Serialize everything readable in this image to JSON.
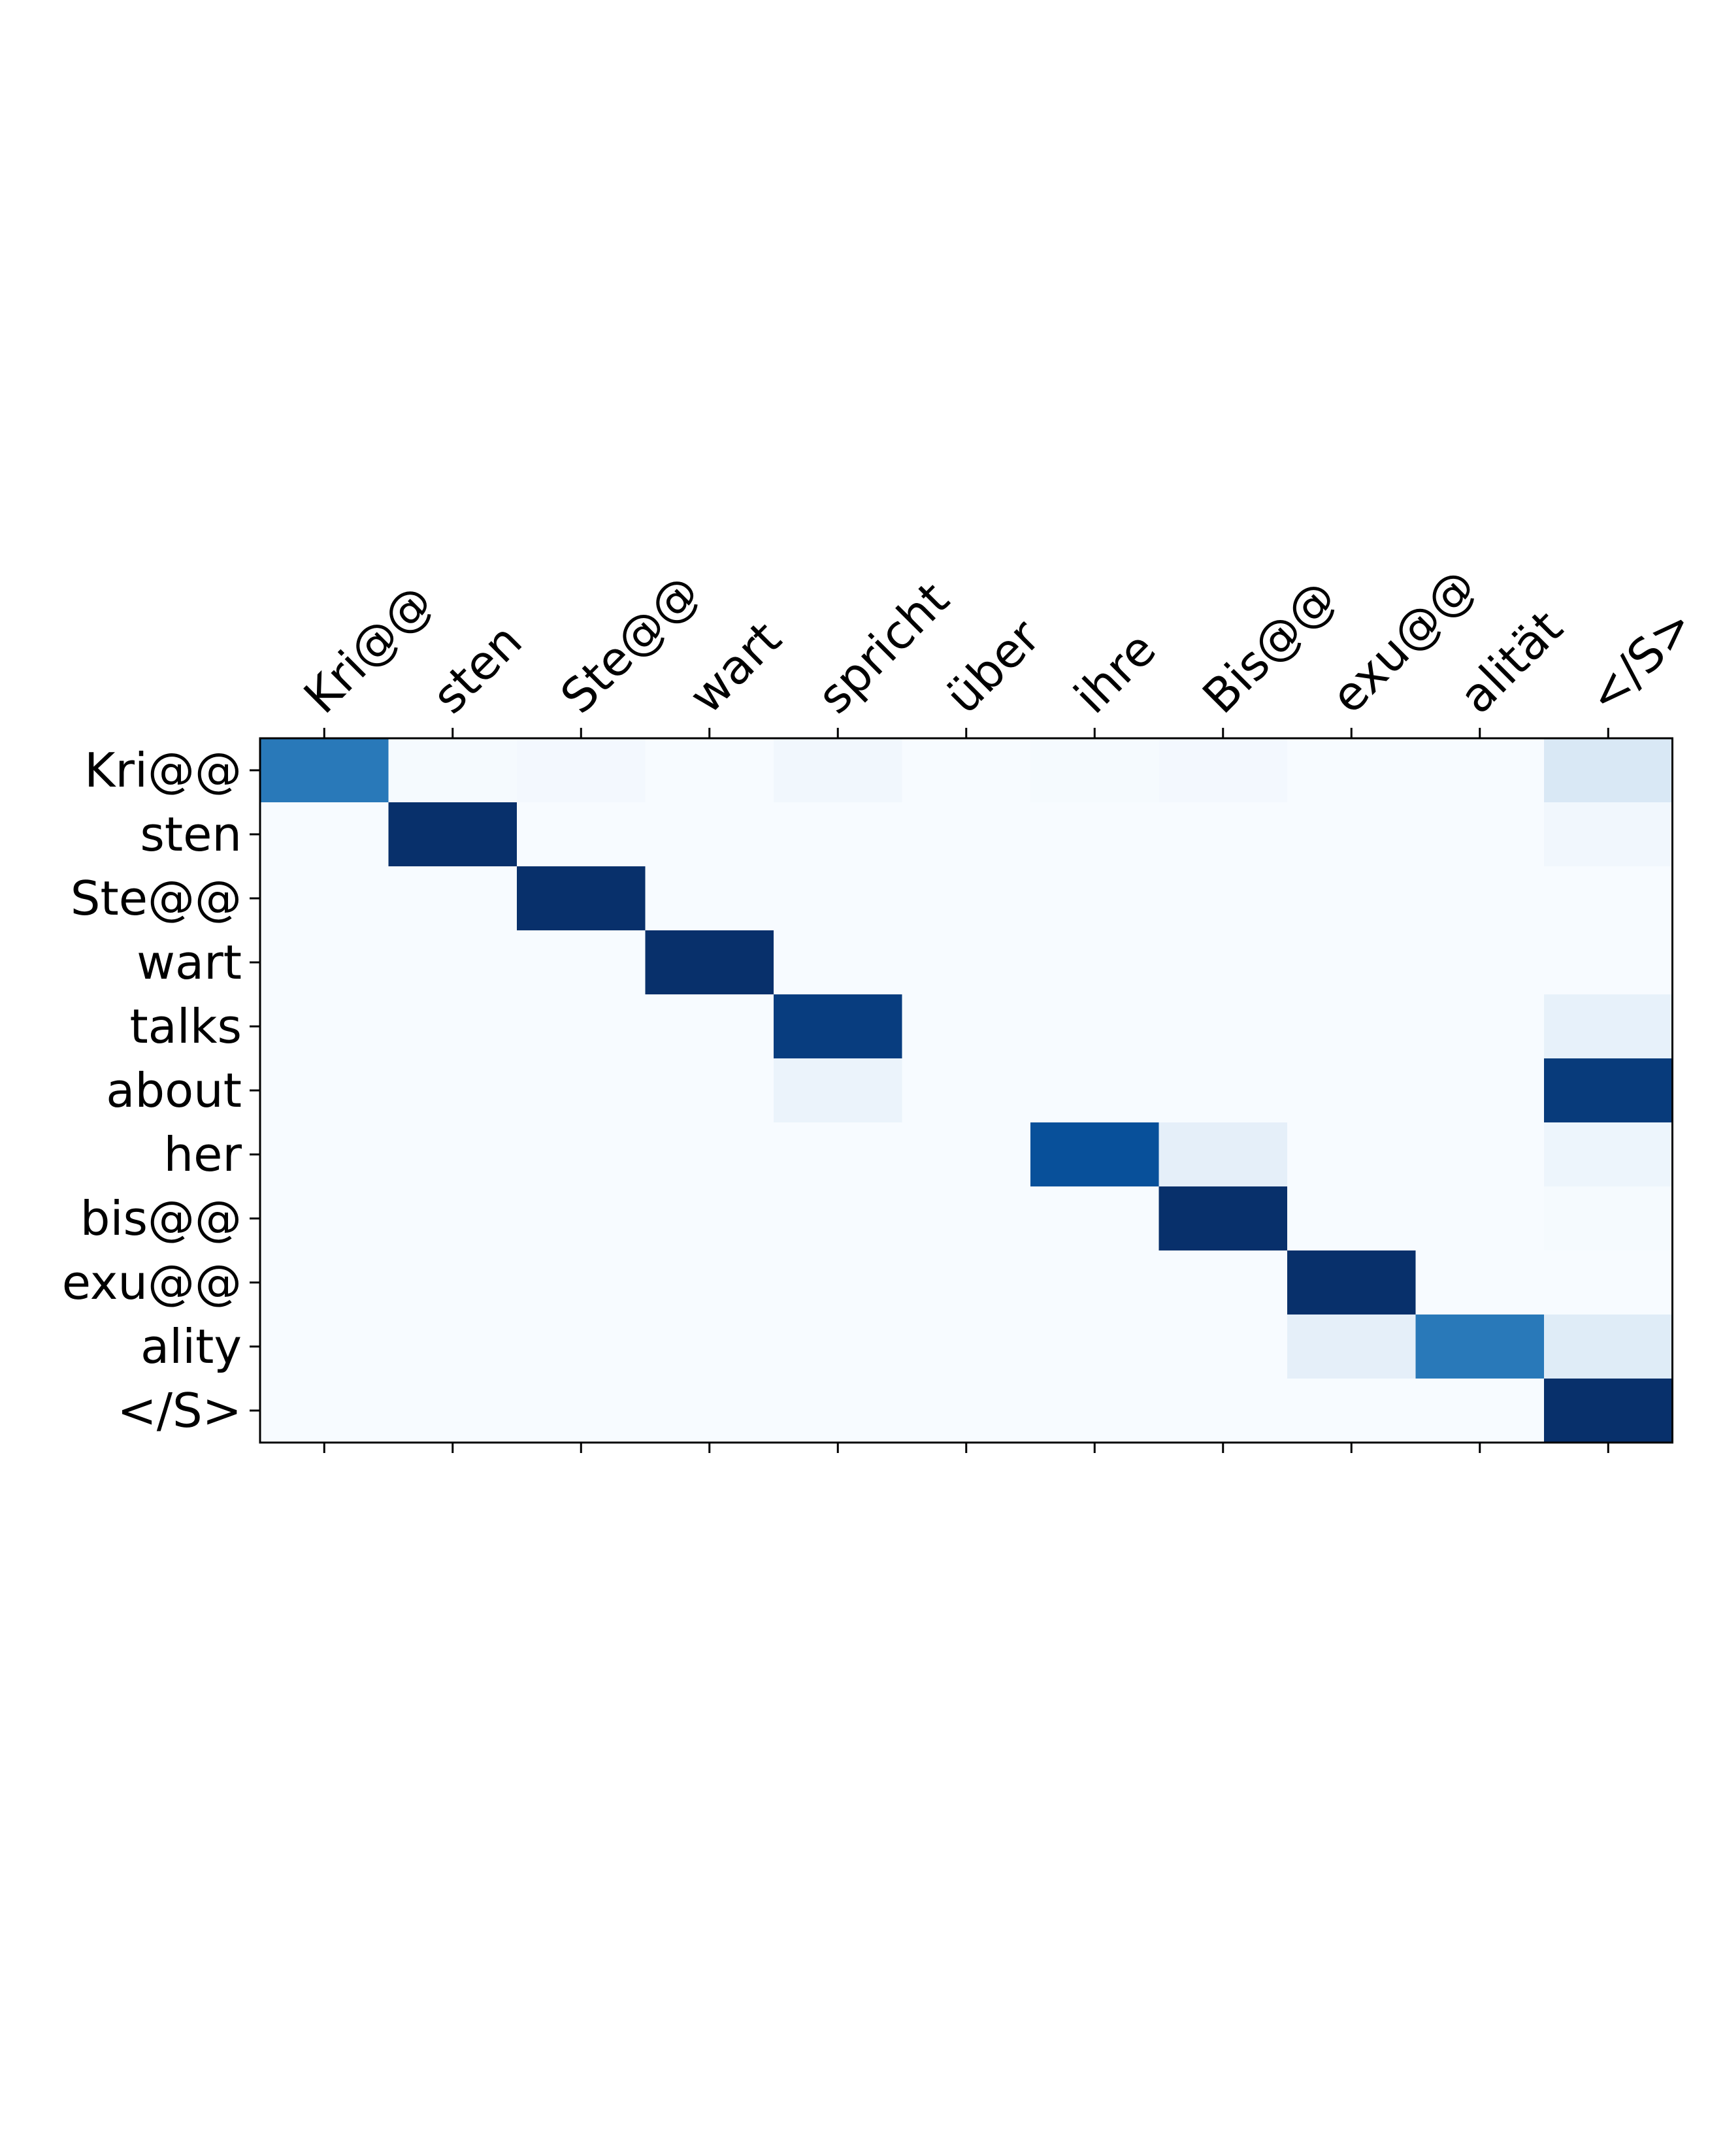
{
  "chart_data": {
    "type": "heatmap",
    "title": "",
    "xlabel": "",
    "ylabel": "",
    "x_labels": [
      "Kri@@",
      "sten",
      "Ste@@",
      "wart",
      "spricht",
      "über",
      "ihre",
      "Bis@@",
      "exu@@",
      "alität",
      "</S>"
    ],
    "y_labels": [
      "Kri@@",
      "sten",
      "Ste@@",
      "wart",
      "talks",
      "about",
      "her",
      "bis@@",
      "exu@@",
      "ality",
      "</S>"
    ],
    "x_axis_position": "top",
    "colormap": "Blues",
    "value_range": [
      0,
      1
    ],
    "colorbar": false,
    "grid": false,
    "values": [
      [
        0.72,
        0.01,
        0.02,
        0.0,
        0.03,
        0.0,
        0.01,
        0.02,
        0.0,
        0.0,
        0.15
      ],
      [
        0.0,
        1.0,
        0.0,
        0.0,
        0.0,
        0.0,
        0.0,
        0.0,
        0.0,
        0.0,
        0.03
      ],
      [
        0.0,
        0.0,
        1.0,
        0.0,
        0.0,
        0.0,
        0.0,
        0.0,
        0.0,
        0.0,
        0.0
      ],
      [
        0.0,
        0.0,
        0.0,
        1.0,
        0.0,
        0.0,
        0.0,
        0.0,
        0.0,
        0.0,
        0.0
      ],
      [
        0.0,
        0.0,
        0.0,
        0.0,
        0.95,
        0.0,
        0.0,
        0.0,
        0.0,
        0.0,
        0.08
      ],
      [
        0.0,
        0.0,
        0.0,
        0.0,
        0.06,
        0.0,
        0.0,
        0.0,
        0.0,
        0.0,
        0.96
      ],
      [
        0.0,
        0.0,
        0.0,
        0.0,
        0.0,
        0.0,
        0.88,
        0.09,
        0.0,
        0.0,
        0.05
      ],
      [
        0.0,
        0.0,
        0.0,
        0.0,
        0.0,
        0.0,
        0.0,
        1.0,
        0.0,
        0.0,
        0.01
      ],
      [
        0.0,
        0.0,
        0.0,
        0.0,
        0.0,
        0.0,
        0.0,
        0.0,
        1.0,
        0.0,
        0.0
      ],
      [
        0.0,
        0.0,
        0.0,
        0.0,
        0.0,
        0.0,
        0.0,
        0.0,
        0.09,
        0.72,
        0.12
      ],
      [
        0.0,
        0.0,
        0.0,
        0.0,
        0.0,
        0.0,
        0.0,
        0.0,
        0.0,
        0.0,
        1.0
      ]
    ]
  }
}
